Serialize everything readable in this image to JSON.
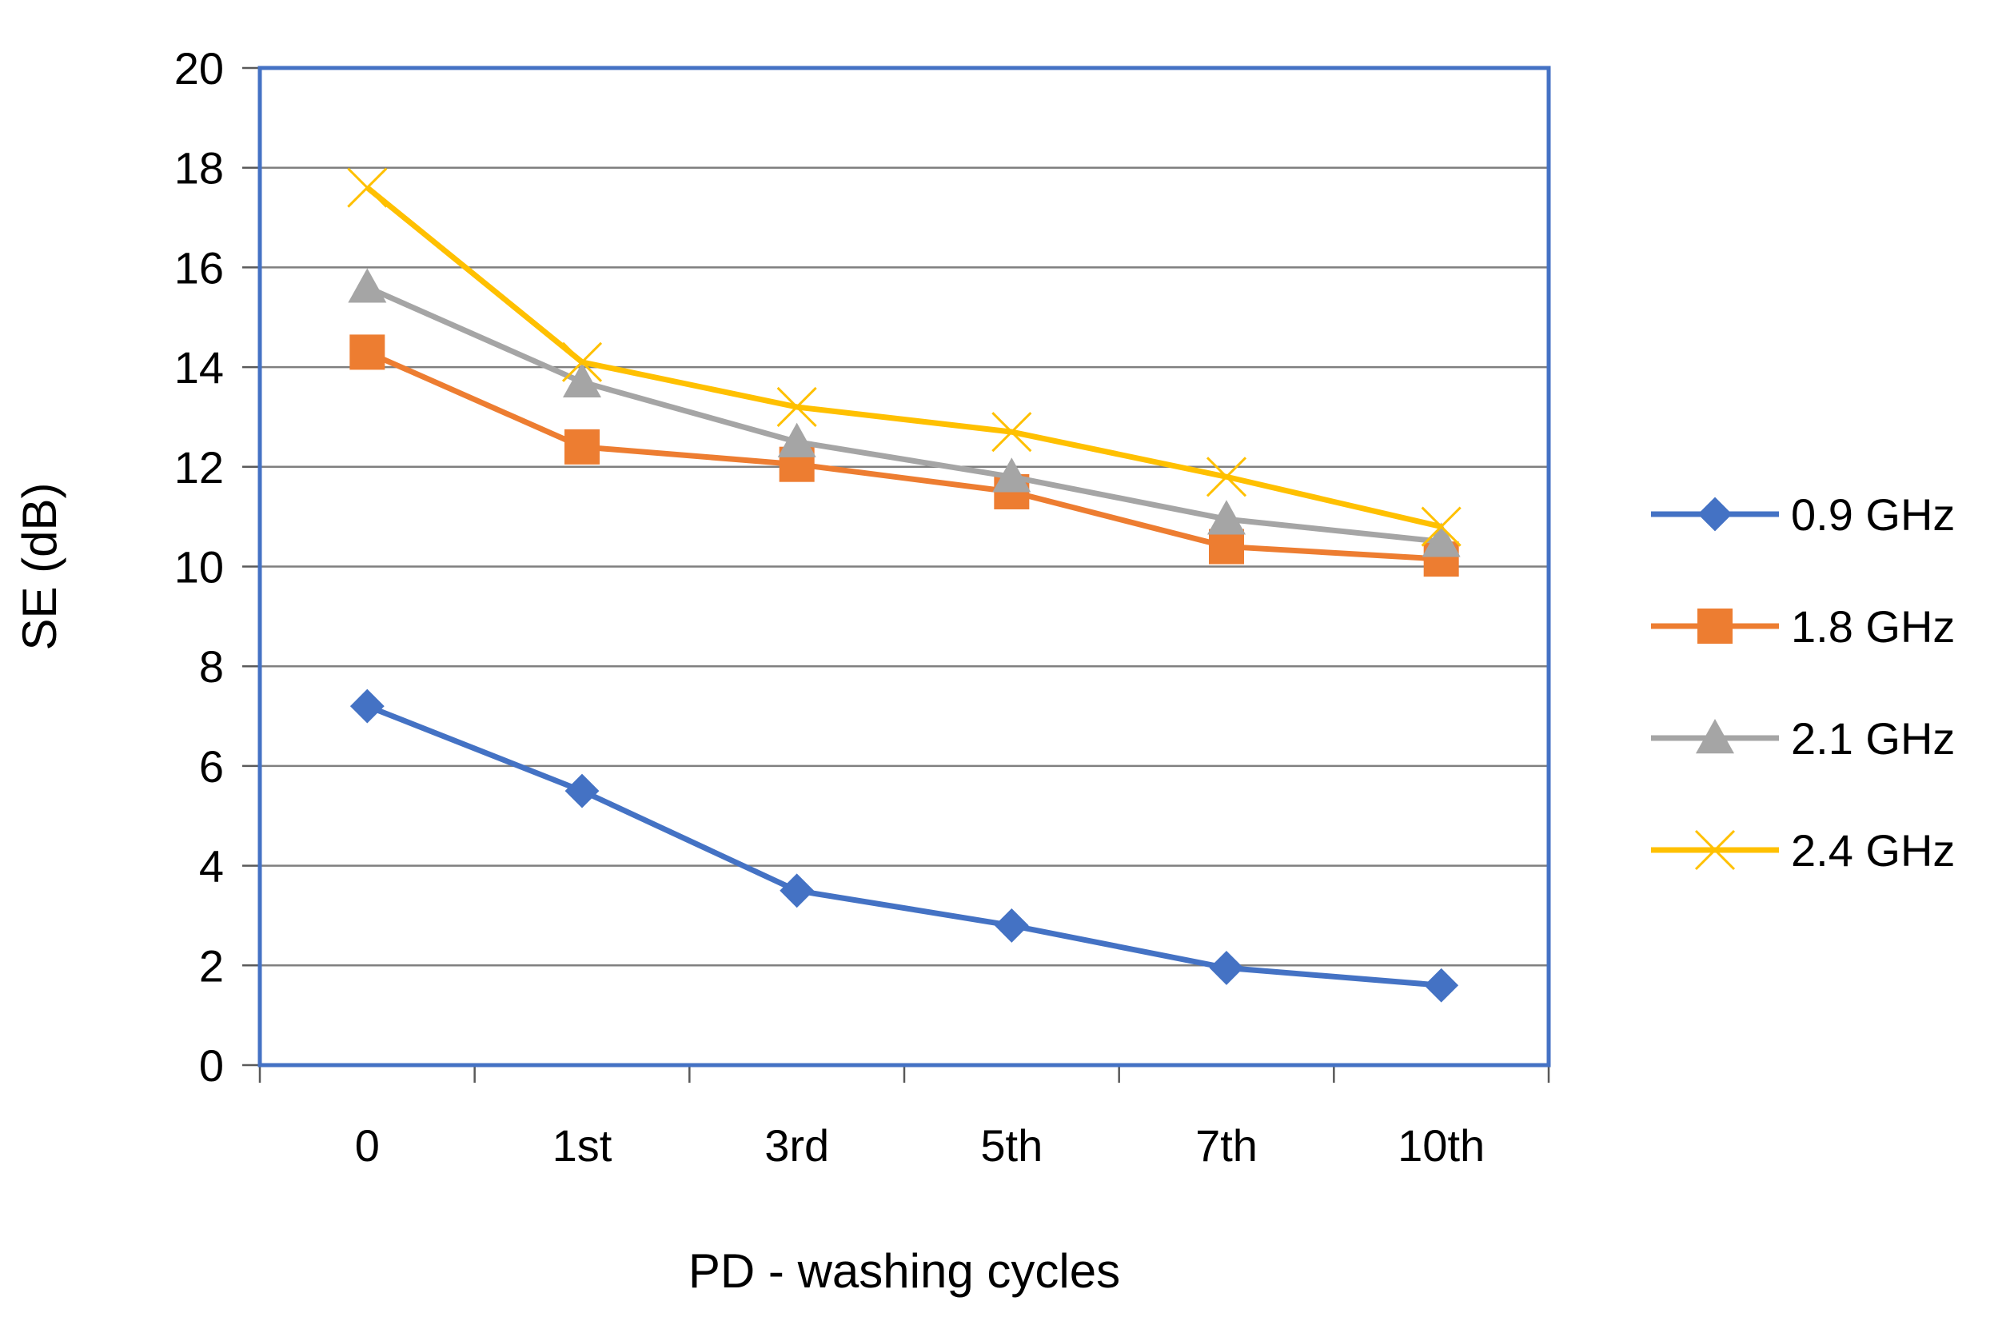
{
  "chart_data": {
    "type": "line",
    "title": "",
    "xlabel": "PD - washing cycles",
    "ylabel": "SE (dB)",
    "categories": [
      "0",
      "1st",
      "3rd",
      "5th",
      "7th",
      "10th"
    ],
    "ylim": [
      0,
      20
    ],
    "yticks": [
      0,
      2,
      4,
      6,
      8,
      10,
      12,
      14,
      16,
      18,
      20
    ],
    "ytick_labels": [
      "0",
      "2",
      "4",
      "6",
      "8",
      "10",
      "12",
      "14",
      "16",
      "18",
      "20"
    ],
    "grid": true,
    "legend_position": "right",
    "series": [
      {
        "name": "0.9 GHz",
        "marker": "diamond",
        "color": "#4472C4",
        "values": [
          7.2,
          5.5,
          3.5,
          2.8,
          1.95,
          1.6
        ]
      },
      {
        "name": "1.8 GHz",
        "marker": "square",
        "color": "#ED7D31",
        "values": [
          14.3,
          12.4,
          12.05,
          11.5,
          10.4,
          10.15
        ]
      },
      {
        "name": "2.1 GHz",
        "marker": "triangle",
        "color": "#A5A5A5",
        "values": [
          15.6,
          13.7,
          12.5,
          11.8,
          10.95,
          10.5
        ]
      },
      {
        "name": "2.4 GHz",
        "marker": "x",
        "color": "#FFC000",
        "values": [
          17.6,
          14.1,
          13.2,
          12.7,
          11.8,
          10.8
        ]
      }
    ]
  },
  "colors": {
    "plot_border": "#4472C4",
    "gridline": "#7F7F7F",
    "axis": "#595959"
  }
}
